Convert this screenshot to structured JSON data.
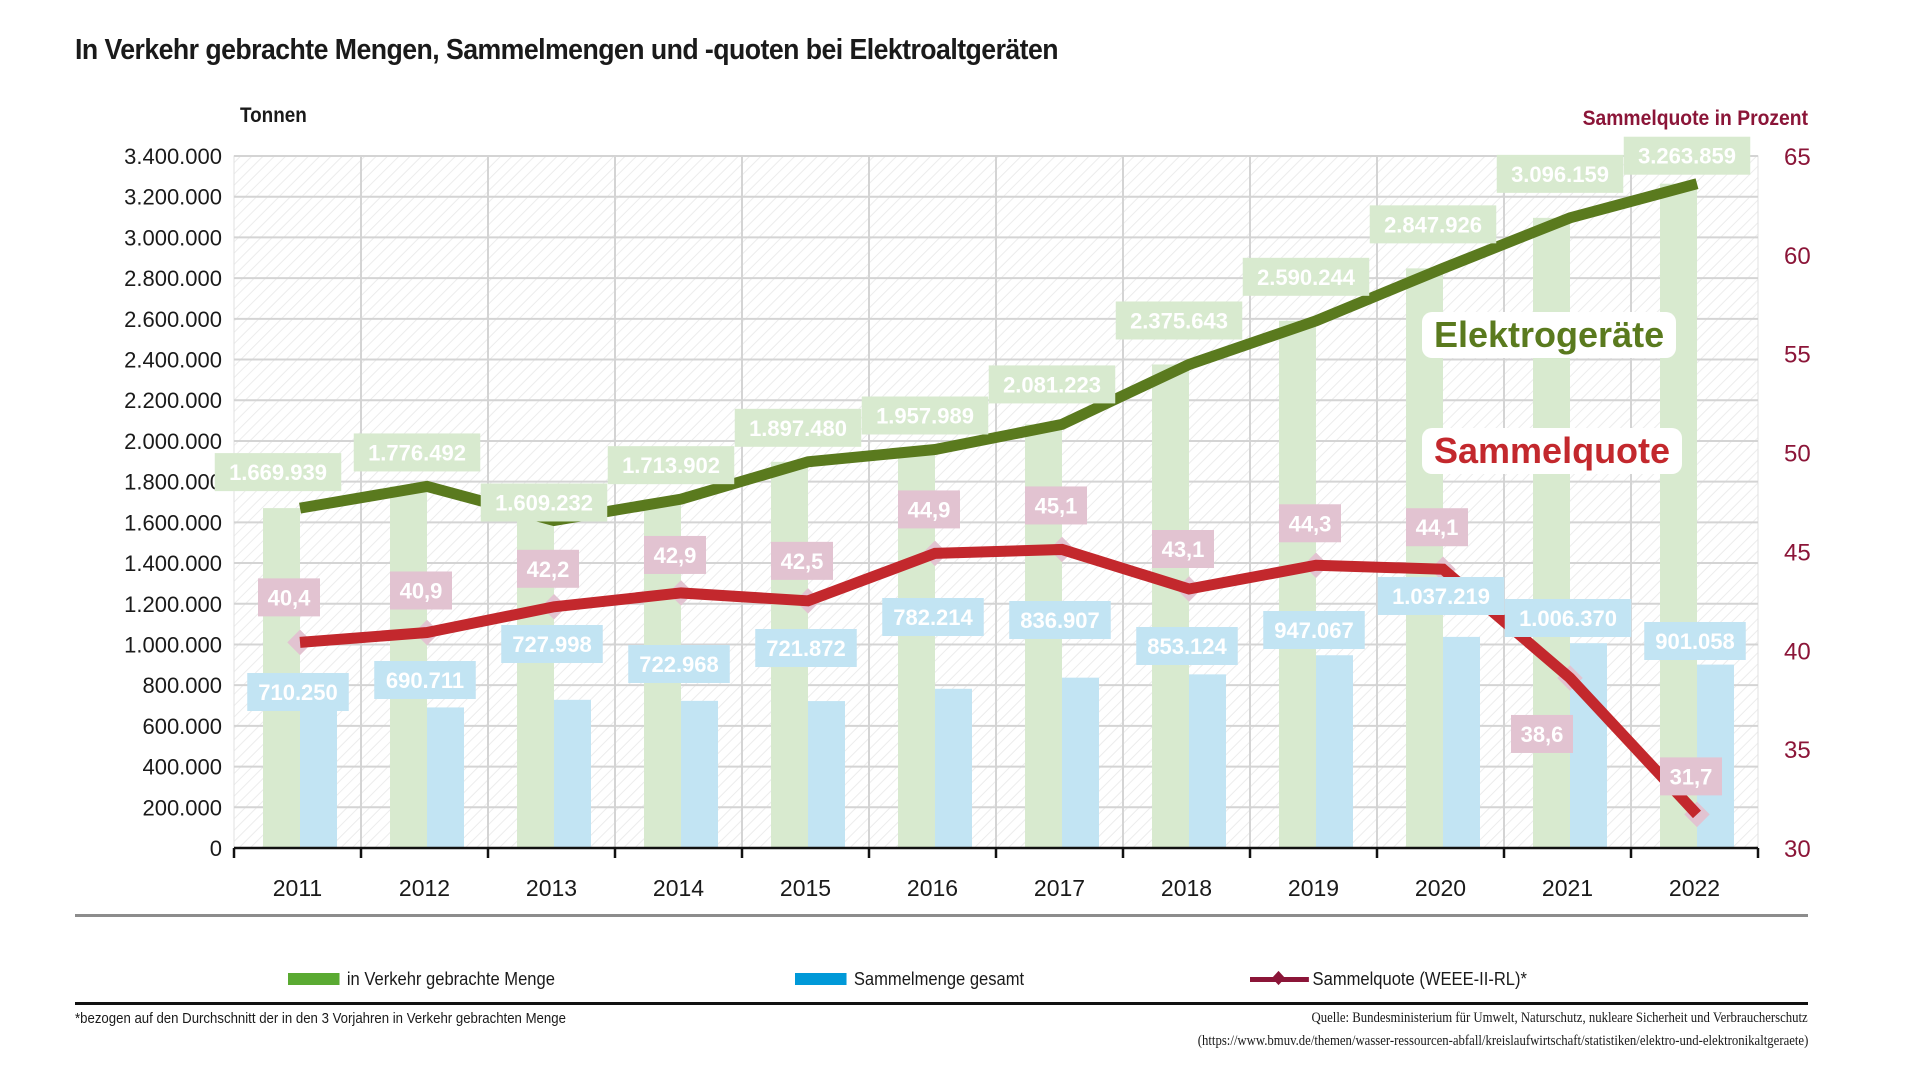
{
  "title": "In Verkehr gebrachte Mengen, Sammelmengen und -quoten bei Elektroaltgeräten",
  "callouts": {
    "green": "Elektrogeräte",
    "red": "Sammelquote"
  },
  "legend": {
    "items": [
      {
        "label": "in Verkehr gebrachte Menge",
        "color": "#5aaa32"
      },
      {
        "label": "Sammelmenge gesamt",
        "color": "#0099d8"
      },
      {
        "label": "Sammelquote (WEEE-II-RL)*",
        "color": "#8b1538"
      }
    ]
  },
  "footnote": "*bezogen auf den Durchschnitt der in den 3 Vorjahren in Verkehr gebrachten Menge",
  "source": {
    "line1": "Quelle: Bundesministerium für Umwelt, Naturschutz, nukleare Sicherheit und Verbraucherschutz",
    "line2": "(https://www.bmuv.de/themen/wasser-ressourcen-abfall/kreislaufwirtschaft/statistiken/elektro-und-elektronikaltgeraete)"
  },
  "colors": {
    "green_bar": "#d8eacf",
    "blue_bar": "#c2e4f3",
    "green_line": "#5a7a1e",
    "red_line": "#c3282d",
    "pink_label": "#e2c3d1",
    "axis_right": "#8b1538",
    "grid": "#d4d4d4"
  },
  "chart_data": {
    "type": "bar",
    "title": "In Verkehr gebrachte Mengen, Sammelmengen und -quoten bei Elektroaltgeräten",
    "ylabel": "Tonnen",
    "y2label": "Sammelquote in Prozent",
    "xlabel": "",
    "grid": true,
    "legend_position": "bottom",
    "ylim": [
      0,
      3400000
    ],
    "y2lim": [
      30,
      65
    ],
    "yticks": [
      "0",
      "200.000",
      "400.000",
      "600.000",
      "800.000",
      "1.000.000",
      "1.200.000",
      "1.400.000",
      "1.600.000",
      "1.800.000",
      "2.000.000",
      "2.200.000",
      "2.400.000",
      "2.600.000",
      "2.800.000",
      "3.000.000",
      "3.200.000",
      "3.400.000"
    ],
    "y2ticks": [
      "30",
      "35",
      "40",
      "45",
      "50",
      "55",
      "60",
      "65"
    ],
    "categories": [
      "2011",
      "2012",
      "2013",
      "2014",
      "2015",
      "2016",
      "2017",
      "2018",
      "2019",
      "2020",
      "2021",
      "2022"
    ],
    "series": [
      {
        "name": "in Verkehr gebrachte Menge",
        "kind": "bar+line",
        "axis": "left",
        "values": [
          1669939,
          1776492,
          1609232,
          1713902,
          1897480,
          1957989,
          2081223,
          2375643,
          2590244,
          2847926,
          3096159,
          3263859
        ],
        "labels": [
          "1.669.939",
          "1.776.492",
          "1.609.232",
          "1.713.902",
          "1.897.480",
          "1.957.989",
          "2.081.223",
          "2.375.643",
          "2.590.244",
          "2.847.926",
          "3.096.159",
          "3.263.859"
        ]
      },
      {
        "name": "Sammelmenge gesamt",
        "kind": "bar",
        "axis": "left",
        "values": [
          710250,
          690711,
          727998,
          722968,
          721872,
          782214,
          836907,
          853124,
          947067,
          1037219,
          1006370,
          901058
        ],
        "labels": [
          "710.250",
          "690.711",
          "727.998",
          "722.968",
          "721.872",
          "782.214",
          "836.907",
          "853.124",
          "947.067",
          "1.037.219",
          "1.006.370",
          "901.058"
        ]
      },
      {
        "name": "Sammelquote (WEEE-II-RL)*",
        "kind": "line",
        "axis": "right",
        "values": [
          40.4,
          40.9,
          42.2,
          42.9,
          42.5,
          44.9,
          45.1,
          43.1,
          44.3,
          44.1,
          38.6,
          31.7
        ],
        "labels": [
          "40,4",
          "40,9",
          "42,2",
          "42,9",
          "42,5",
          "44,9",
          "45,1",
          "43,1",
          "44,3",
          "44,1",
          "38,6",
          "31,7"
        ]
      }
    ]
  }
}
